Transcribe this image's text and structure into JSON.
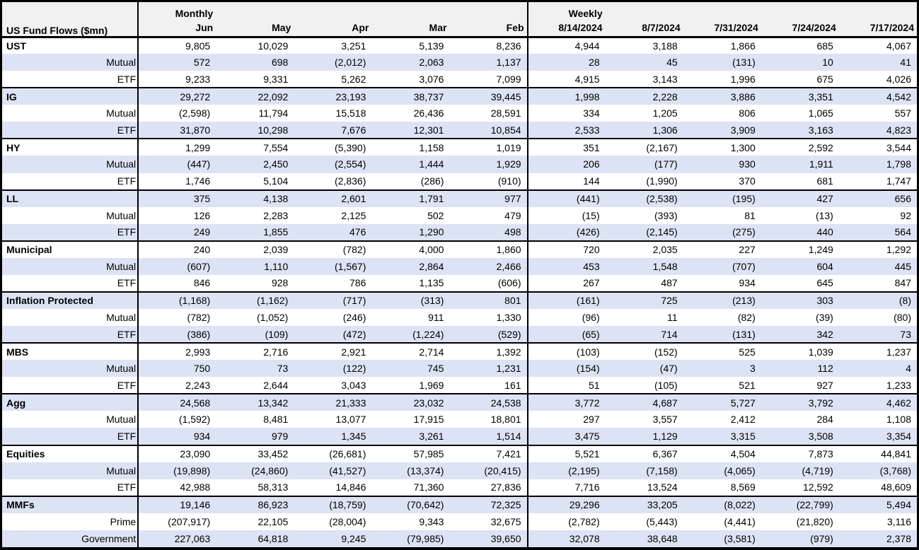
{
  "chart_data": {
    "type": "table",
    "title": "US Fund Flows ($mn)",
    "column_groups": [
      {
        "label": "Monthly",
        "span": 5
      },
      {
        "label": "Weekly",
        "span": 5
      }
    ],
    "columns": [
      "Jun",
      "May",
      "Apr",
      "Mar",
      "Feb",
      "8/14/2024",
      "8/7/2024",
      "7/31/2024",
      "7/24/2024",
      "7/17/2024"
    ],
    "negative_format": "parentheses",
    "sections": [
      {
        "rows": [
          {
            "label": "UST",
            "values": [
              "9,805",
              "10,029",
              "3,251",
              "5,139",
              "8,236",
              "4,944",
              "3,188",
              "1,866",
              "685",
              "4,067"
            ]
          },
          {
            "label": "Mutual",
            "values": [
              "572",
              "698",
              "(2,012)",
              "2,063",
              "1,137",
              "28",
              "45",
              "(131)",
              "10",
              "41"
            ]
          },
          {
            "label": "ETF",
            "values": [
              "9,233",
              "9,331",
              "5,262",
              "3,076",
              "7,099",
              "4,915",
              "3,143",
              "1,996",
              "675",
              "4,026"
            ]
          }
        ]
      },
      {
        "rows": [
          {
            "label": "IG",
            "values": [
              "29,272",
              "22,092",
              "23,193",
              "38,737",
              "39,445",
              "1,998",
              "2,228",
              "3,886",
              "3,351",
              "4,542"
            ]
          },
          {
            "label": "Mutual",
            "values": [
              "(2,598)",
              "11,794",
              "15,518",
              "26,436",
              "28,591",
              "334",
              "1,205",
              "806",
              "1,065",
              "557"
            ]
          },
          {
            "label": "ETF",
            "values": [
              "31,870",
              "10,298",
              "7,676",
              "12,301",
              "10,854",
              "2,533",
              "1,306",
              "3,909",
              "3,163",
              "4,823"
            ]
          }
        ]
      },
      {
        "rows": [
          {
            "label": "HY",
            "values": [
              "1,299",
              "7,554",
              "(5,390)",
              "1,158",
              "1,019",
              "351",
              "(2,167)",
              "1,300",
              "2,592",
              "3,544"
            ]
          },
          {
            "label": "Mutual",
            "values": [
              "(447)",
              "2,450",
              "(2,554)",
              "1,444",
              "1,929",
              "206",
              "(177)",
              "930",
              "1,911",
              "1,798"
            ]
          },
          {
            "label": "ETF",
            "values": [
              "1,746",
              "5,104",
              "(2,836)",
              "(286)",
              "(910)",
              "144",
              "(1,990)",
              "370",
              "681",
              "1,747"
            ]
          }
        ]
      },
      {
        "rows": [
          {
            "label": "LL",
            "values": [
              "375",
              "4,138",
              "2,601",
              "1,791",
              "977",
              "(441)",
              "(2,538)",
              "(195)",
              "427",
              "656"
            ]
          },
          {
            "label": "Mutual",
            "values": [
              "126",
              "2,283",
              "2,125",
              "502",
              "479",
              "(15)",
              "(393)",
              "81",
              "(13)",
              "92"
            ]
          },
          {
            "label": "ETF",
            "values": [
              "249",
              "1,855",
              "476",
              "1,290",
              "498",
              "(426)",
              "(2,145)",
              "(275)",
              "440",
              "564"
            ]
          }
        ]
      },
      {
        "rows": [
          {
            "label": "Municipal",
            "values": [
              "240",
              "2,039",
              "(782)",
              "4,000",
              "1,860",
              "720",
              "2,035",
              "227",
              "1,249",
              "1,292"
            ]
          },
          {
            "label": "Mutual",
            "values": [
              "(607)",
              "1,110",
              "(1,567)",
              "2,864",
              "2,466",
              "453",
              "1,548",
              "(707)",
              "604",
              "445"
            ]
          },
          {
            "label": "ETF",
            "values": [
              "846",
              "928",
              "786",
              "1,135",
              "(606)",
              "267",
              "487",
              "934",
              "645",
              "847"
            ]
          }
        ]
      },
      {
        "rows": [
          {
            "label": "Inflation Protected",
            "values": [
              "(1,168)",
              "(1,162)",
              "(717)",
              "(313)",
              "801",
              "(161)",
              "725",
              "(213)",
              "303",
              "(8)"
            ]
          },
          {
            "label": "Mutual",
            "values": [
              "(782)",
              "(1,052)",
              "(246)",
              "911",
              "1,330",
              "(96)",
              "11",
              "(82)",
              "(39)",
              "(80)"
            ]
          },
          {
            "label": "ETF",
            "values": [
              "(386)",
              "(109)",
              "(472)",
              "(1,224)",
              "(529)",
              "(65)",
              "714",
              "(131)",
              "342",
              "73"
            ]
          }
        ]
      },
      {
        "rows": [
          {
            "label": "MBS",
            "values": [
              "2,993",
              "2,716",
              "2,921",
              "2,714",
              "1,392",
              "(103)",
              "(152)",
              "525",
              "1,039",
              "1,237"
            ]
          },
          {
            "label": "Mutual",
            "values": [
              "750",
              "73",
              "(122)",
              "745",
              "1,231",
              "(154)",
              "(47)",
              "3",
              "112",
              "4"
            ]
          },
          {
            "label": "ETF",
            "values": [
              "2,243",
              "2,644",
              "3,043",
              "1,969",
              "161",
              "51",
              "(105)",
              "521",
              "927",
              "1,233"
            ]
          }
        ]
      },
      {
        "rows": [
          {
            "label": "Agg",
            "values": [
              "24,568",
              "13,342",
              "21,333",
              "23,032",
              "24,538",
              "3,772",
              "4,687",
              "5,727",
              "3,792",
              "4,462"
            ]
          },
          {
            "label": "Mutual",
            "values": [
              "(1,592)",
              "8,481",
              "13,077",
              "17,915",
              "18,801",
              "297",
              "3,557",
              "2,412",
              "284",
              "1,108"
            ]
          },
          {
            "label": "ETF",
            "values": [
              "934",
              "979",
              "1,345",
              "3,261",
              "1,514",
              "3,475",
              "1,129",
              "3,315",
              "3,508",
              "3,354"
            ]
          }
        ]
      },
      {
        "rows": [
          {
            "label": "Equities",
            "values": [
              "23,090",
              "33,452",
              "(26,681)",
              "57,985",
              "7,421",
              "5,521",
              "6,367",
              "4,504",
              "7,873",
              "44,841"
            ]
          },
          {
            "label": "Mutual",
            "values": [
              "(19,898)",
              "(24,860)",
              "(41,527)",
              "(13,374)",
              "(20,415)",
              "(2,195)",
              "(7,158)",
              "(4,065)",
              "(4,719)",
              "(3,768)"
            ]
          },
          {
            "label": "ETF",
            "values": [
              "42,988",
              "58,313",
              "14,846",
              "71,360",
              "27,836",
              "7,716",
              "13,524",
              "8,569",
              "12,592",
              "48,609"
            ]
          }
        ]
      },
      {
        "rows": [
          {
            "label": "MMFs",
            "values": [
              "19,146",
              "86,923",
              "(18,759)",
              "(70,642)",
              "72,325",
              "29,296",
              "33,205",
              "(8,022)",
              "(22,799)",
              "5,494"
            ]
          },
          {
            "label": "Prime",
            "values": [
              "(207,917)",
              "22,105",
              "(28,004)",
              "9,343",
              "32,675",
              "(2,782)",
              "(5,443)",
              "(4,441)",
              "(21,820)",
              "3,116"
            ]
          },
          {
            "label": "Government",
            "values": [
              "227,063",
              "64,818",
              "9,245",
              "(79,985)",
              "39,650",
              "32,078",
              "38,648",
              "(3,581)",
              "(979)",
              "2,378"
            ]
          }
        ]
      }
    ],
    "layout": {
      "band_color": "#DCE3F4",
      "header_bg": "#F1F1F1",
      "border_color": "#000000",
      "grid": "group-separators-only",
      "value_alignment": "right"
    }
  }
}
